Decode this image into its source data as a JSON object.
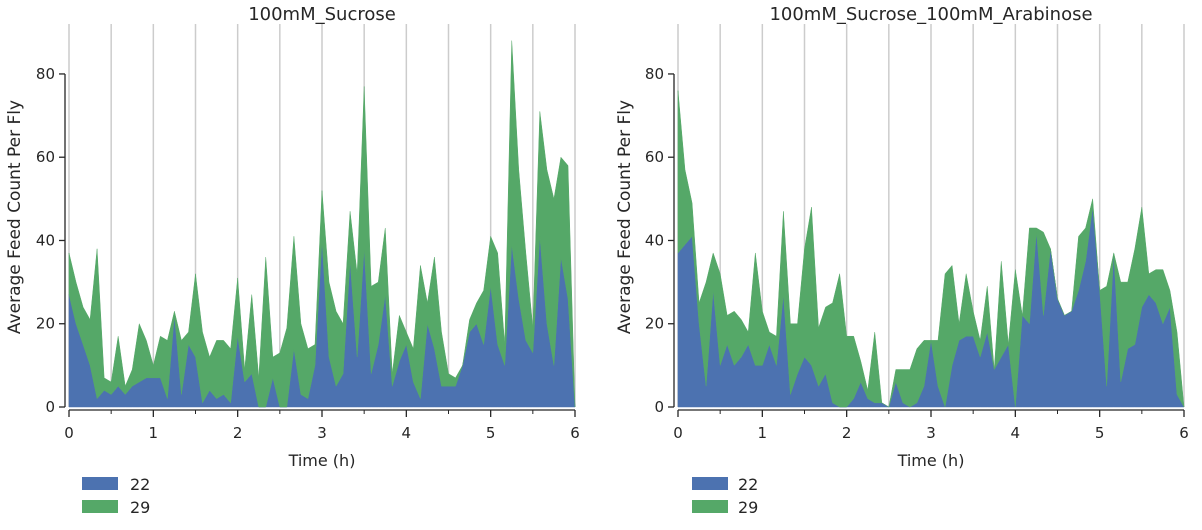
{
  "colors": {
    "series_22": "#4c72b0",
    "series_29": "#55a868",
    "grid": "#cccccc",
    "axis": "#262626"
  },
  "chart_data": [
    {
      "type": "area",
      "stacked": true,
      "title": "100mM_Sucrose",
      "xlabel": "Time (h)",
      "ylabel": "Average Feed Count Per Fly",
      "xlim": [
        0,
        6
      ],
      "ylim": [
        0,
        92
      ],
      "xticks": [
        0,
        1,
        2,
        3,
        4,
        5,
        6
      ],
      "xtick_labels": [
        "0",
        "1",
        "2",
        "3",
        "4",
        "5",
        "6"
      ],
      "yticks": [
        0,
        20,
        40,
        60,
        80
      ],
      "ytick_labels": [
        "0",
        "20",
        "40",
        "60",
        "80"
      ],
      "vertical_grid_x": [
        0,
        0.5,
        1,
        1.5,
        2,
        2.5,
        3,
        3.5,
        4,
        4.5,
        5,
        5.5,
        6
      ],
      "legend_position": "below-left",
      "x": [
        0,
        0.083,
        0.167,
        0.25,
        0.333,
        0.417,
        0.5,
        0.583,
        0.667,
        0.75,
        0.833,
        0.917,
        1,
        1.083,
        1.167,
        1.25,
        1.333,
        1.417,
        1.5,
        1.583,
        1.667,
        1.75,
        1.833,
        1.917,
        2,
        2.083,
        2.167,
        2.25,
        2.333,
        2.417,
        2.5,
        2.583,
        2.667,
        2.75,
        2.833,
        2.917,
        3,
        3.083,
        3.167,
        3.25,
        3.333,
        3.417,
        3.5,
        3.583,
        3.667,
        3.75,
        3.833,
        3.917,
        4,
        4.083,
        4.167,
        4.25,
        4.333,
        4.417,
        4.5,
        4.583,
        4.667,
        4.75,
        4.833,
        4.917,
        5,
        5.083,
        5.167,
        5.25,
        5.333,
        5.417,
        5.5,
        5.583,
        5.667,
        5.75,
        5.833,
        5.917,
        6
      ],
      "series": [
        {
          "name": "22",
          "values": [
            27,
            20,
            15,
            10,
            2,
            4,
            3,
            5,
            3,
            5,
            6,
            7,
            7,
            7,
            2,
            22,
            3,
            15,
            12,
            1,
            4,
            2,
            3,
            1,
            17,
            6,
            8,
            0,
            0,
            7,
            0,
            0,
            14,
            3,
            2,
            10,
            40,
            12,
            5,
            8,
            35,
            12,
            38,
            8,
            15,
            27,
            5,
            11,
            15,
            6,
            2,
            20,
            14,
            5,
            5,
            5,
            10,
            18,
            20,
            15,
            29,
            15,
            10,
            39,
            26,
            16,
            13,
            41,
            20,
            10,
            36,
            26,
            0
          ]
        },
        {
          "name": "29",
          "values": [
            10,
            10,
            9,
            11,
            36,
            3,
            3,
            12,
            2,
            4,
            14,
            9,
            3,
            10,
            14,
            1,
            13,
            3,
            20,
            17,
            8,
            14,
            13,
            13,
            14,
            3,
            19,
            7,
            36,
            5,
            13,
            19,
            27,
            17,
            12,
            5,
            12,
            18,
            18,
            12,
            12,
            20,
            39,
            21,
            15,
            16,
            3,
            11,
            3,
            8,
            32,
            5,
            22,
            13,
            3,
            2,
            0,
            3,
            5,
            13,
            12,
            22,
            5,
            49,
            31,
            21,
            6,
            30,
            37,
            40,
            24,
            32,
            0
          ]
        }
      ]
    },
    {
      "type": "area",
      "stacked": true,
      "title": "100mM_Sucrose_100mM_Arabinose",
      "xlabel": "Time (h)",
      "ylabel": "Average Feed Count Per Fly",
      "xlim": [
        0,
        6
      ],
      "ylim": [
        0,
        92
      ],
      "xticks": [
        0,
        1,
        2,
        3,
        4,
        5,
        6
      ],
      "xtick_labels": [
        "0",
        "1",
        "2",
        "3",
        "4",
        "5",
        "6"
      ],
      "yticks": [
        0,
        20,
        40,
        60,
        80
      ],
      "ytick_labels": [
        "0",
        "20",
        "40",
        "60",
        "80"
      ],
      "vertical_grid_x": [
        0,
        0.5,
        1,
        1.5,
        2,
        2.5,
        3,
        3.5,
        4,
        4.5,
        5,
        5.5,
        6
      ],
      "legend_position": "below-left",
      "x": [
        0,
        0.083,
        0.167,
        0.25,
        0.333,
        0.417,
        0.5,
        0.583,
        0.667,
        0.75,
        0.833,
        0.917,
        1,
        1.083,
        1.167,
        1.25,
        1.333,
        1.417,
        1.5,
        1.583,
        1.667,
        1.75,
        1.833,
        1.917,
        2,
        2.083,
        2.167,
        2.25,
        2.333,
        2.417,
        2.5,
        2.583,
        2.667,
        2.75,
        2.833,
        2.917,
        3,
        3.083,
        3.167,
        3.25,
        3.333,
        3.417,
        3.5,
        3.583,
        3.667,
        3.75,
        3.833,
        3.917,
        4,
        4.083,
        4.167,
        4.25,
        4.333,
        4.417,
        4.5,
        4.583,
        4.667,
        4.75,
        4.833,
        4.917,
        5,
        5.083,
        5.167,
        5.25,
        5.333,
        5.417,
        5.5,
        5.583,
        5.667,
        5.75,
        5.833,
        5.917,
        6
      ],
      "series": [
        {
          "name": "22",
          "values": [
            37,
            39,
            41,
            20,
            5,
            28,
            10,
            15,
            10,
            12,
            15,
            10,
            10,
            15,
            10,
            27,
            3,
            8,
            12,
            10,
            5,
            8,
            1,
            0,
            0,
            2,
            6,
            2,
            1,
            1,
            0,
            6,
            1,
            0,
            1,
            5,
            16,
            5,
            0,
            10,
            16,
            17,
            17,
            12,
            18,
            9,
            12,
            15,
            0,
            22,
            20,
            42,
            22,
            38,
            26,
            22,
            23,
            28,
            35,
            48,
            28,
            5,
            37,
            6,
            14,
            15,
            24,
            27,
            25,
            20,
            24,
            3,
            0
          ]
        },
        {
          "name": "29",
          "values": [
            39,
            18,
            8,
            5,
            25,
            9,
            22,
            7,
            13,
            9,
            3,
            27,
            13,
            3,
            7,
            20,
            17,
            12,
            26,
            38,
            14,
            16,
            24,
            32,
            17,
            15,
            5,
            2,
            17,
            0,
            0,
            3,
            8,
            9,
            13,
            11,
            0,
            11,
            32,
            24,
            4,
            15,
            6,
            4,
            11,
            0,
            23,
            0,
            33,
            0,
            23,
            1,
            20,
            0,
            0,
            0,
            0,
            13,
            8,
            2,
            0,
            24,
            0,
            24,
            16,
            23,
            24,
            5,
            8,
            13,
            4,
            15,
            0
          ]
        }
      ]
    }
  ]
}
